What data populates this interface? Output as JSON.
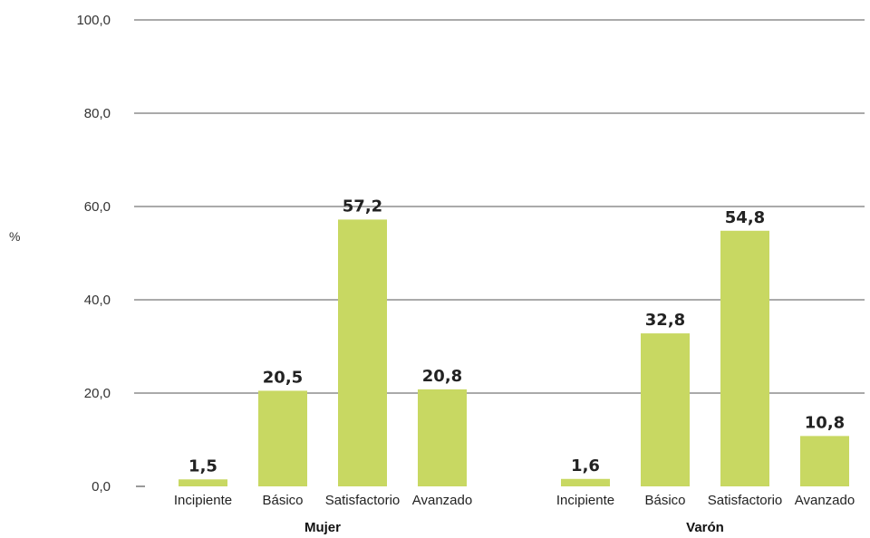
{
  "chart_data": {
    "type": "bar",
    "ylabel": "%",
    "ylim": [
      0,
      100
    ],
    "yticks": [
      "0,0",
      "20,0",
      "40,0",
      "60,0",
      "80,0",
      "100,0"
    ],
    "ytick_values": [
      0,
      20,
      40,
      60,
      80,
      100
    ],
    "grid": true,
    "bar_color": "#c8d862",
    "groups": [
      {
        "name": "Mujer",
        "categories": [
          "Incipiente",
          "Básico",
          "Satisfactorio",
          "Avanzado"
        ],
        "values": [
          1.5,
          20.5,
          57.2,
          20.8
        ],
        "labels": [
          "1,5",
          "20,5",
          "57,2",
          "20,8"
        ]
      },
      {
        "name": "Varón",
        "categories": [
          "Incipiente",
          "Básico",
          "Satisfactorio",
          "Avanzado"
        ],
        "values": [
          1.6,
          32.8,
          54.8,
          10.8
        ],
        "labels": [
          "1,6",
          "32,8",
          "54,8",
          "10,8"
        ]
      }
    ]
  }
}
